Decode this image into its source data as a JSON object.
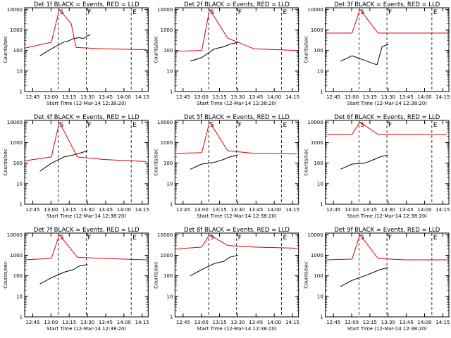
{
  "colors": {
    "events": "#000000",
    "lld": "#e00000",
    "axes": "#000000",
    "background": "#ffffff"
  },
  "chart_data": [
    {
      "type": "line",
      "title": "Det 1f BLACK = Events, RED = LLD",
      "xlabel": "Start Time (12-Mar-14 12:38:20)",
      "ylabel": "Counts/sec",
      "x_ticks": [
        "12:45",
        "13:00",
        "13:15",
        "13:30",
        "13:45",
        "14:00",
        "14:15"
      ],
      "y_ticks": [
        "1",
        "10",
        "100",
        "1000",
        "10000"
      ],
      "yscale": "log",
      "xlim": [
        "12:38:20",
        "14:20:00"
      ],
      "ylim": [
        1,
        12000
      ],
      "markers": {
        "S": [
          "13:06"
        ],
        "F": [
          "13:29"
        ],
        "E": [
          "14:06"
        ],
        "letters": [
          "S",
          "F",
          "E"
        ]
      },
      "series": [
        {
          "name": "Events",
          "points": [
            [
              750,
              55
            ],
            [
              1320,
              120
            ],
            [
              1950,
              260
            ],
            [
              2200,
              300
            ],
            [
              2400,
              380
            ],
            [
              2700,
              420
            ],
            [
              2900,
              380
            ],
            [
              3110,
              520
            ],
            [
              3240,
              590
            ]
          ]
        },
        {
          "name": "LLD",
          "points": [
            [
              0,
              130
            ],
            [
              1320,
              250
            ],
            [
              1710,
              10000
            ],
            [
              2300,
              2000
            ],
            [
              2540,
              140
            ],
            [
              3900,
              120
            ],
            [
              6000,
              110
            ]
          ]
        }
      ]
    },
    {
      "type": "line",
      "title": "Det 2f BLACK = Events, RED = LLD",
      "xlabel": "Start Time (12-Mar-14 12:38:20)",
      "ylabel": "Counts/sec",
      "x_ticks": [
        "12:45",
        "13:00",
        "13:15",
        "13:30",
        "13:45",
        "14:00",
        "14:15"
      ],
      "y_ticks": [
        "1",
        "10",
        "100",
        "1000",
        "10000"
      ],
      "yscale": "log",
      "xlim": [
        "12:38:20",
        "14:20:00"
      ],
      "ylim": [
        1,
        12000
      ],
      "markers": {
        "S": [
          "13:06"
        ],
        "F": [
          "13:29"
        ],
        "E": [
          "14:06"
        ],
        "letters": [
          "S",
          "F",
          "E"
        ]
      },
      "series": [
        {
          "name": "Events",
          "points": [
            [
              750,
              30
            ],
            [
              1320,
              45
            ],
            [
              1950,
              120
            ],
            [
              2400,
              150
            ],
            [
              2700,
              200
            ],
            [
              3110,
              250
            ]
          ]
        },
        {
          "name": "LLD",
          "points": [
            [
              0,
              90
            ],
            [
              1320,
              100
            ],
            [
              1710,
              10000
            ],
            [
              2600,
              400
            ],
            [
              3900,
              120
            ],
            [
              6000,
              100
            ]
          ]
        }
      ]
    },
    {
      "type": "line",
      "title": "Det 3f BLACK = Events, RED = LLD",
      "xlabel": "Start Time (12-Mar-14 12:38:20)",
      "ylabel": "Counts/sec",
      "x_ticks": [
        "12:45",
        "13:00",
        "13:15",
        "13:30",
        "13:45",
        "14:00",
        "14:15"
      ],
      "y_ticks": [
        "1",
        "10",
        "100",
        "1000",
        "10000"
      ],
      "yscale": "log",
      "xlim": [
        "12:38:20",
        "14:20:00"
      ],
      "ylim": [
        1,
        12000
      ],
      "markers": {
        "S": [
          "13:06"
        ],
        "F": [
          "13:29"
        ],
        "E": [
          "14:06"
        ],
        "letters": [
          "S",
          "F",
          "E"
        ]
      },
      "series": [
        {
          "name": "Events",
          "points": [
            [
              750,
              30
            ],
            [
              1320,
              55
            ],
            [
              2550,
              20
            ],
            [
              2800,
              150
            ],
            [
              3110,
              200
            ]
          ]
        },
        {
          "name": "LLD",
          "points": [
            [
              0,
              700
            ],
            [
              1320,
              700
            ],
            [
              1710,
              10000
            ],
            [
              2600,
              700
            ],
            [
              6000,
              700
            ]
          ]
        }
      ]
    },
    {
      "type": "line",
      "title": "Det 4f BLACK = Events, RED = LLD",
      "xlabel": "Start Time (12-Mar-14 12:38:20)",
      "ylabel": "Counts/sec",
      "x_ticks": [
        "12:45",
        "13:00",
        "13:15",
        "13:30",
        "13:45",
        "14:00",
        "14:15"
      ],
      "y_ticks": [
        "1",
        "10",
        "100",
        "1000",
        "10000"
      ],
      "yscale": "log",
      "xlim": [
        "12:38:20",
        "14:20:00"
      ],
      "ylim": [
        1,
        12000
      ],
      "markers": {
        "S": [
          "13:06"
        ],
        "F": [
          "13:29"
        ],
        "E": [
          "14:06"
        ],
        "letters": [
          "S",
          "F",
          "E"
        ]
      },
      "series": [
        {
          "name": "Events",
          "points": [
            [
              750,
              40
            ],
            [
              1320,
              100
            ],
            [
              1950,
              200
            ],
            [
              2400,
              250
            ],
            [
              2700,
              300
            ],
            [
              3110,
              400
            ]
          ]
        },
        {
          "name": "LLD",
          "points": [
            [
              0,
              130
            ],
            [
              1320,
              200
            ],
            [
              1710,
              10000
            ],
            [
              2600,
              200
            ],
            [
              3900,
              150
            ],
            [
              6000,
              120
            ]
          ]
        }
      ]
    },
    {
      "type": "line",
      "title": "Det 5f BLACK = Events, RED = LLD",
      "xlabel": "Start Time (12-Mar-14 12:38:20)",
      "ylabel": "Counts/sec",
      "x_ticks": [
        "12:45",
        "13:00",
        "13:15",
        "13:30",
        "13:45",
        "14:00",
        "14:15"
      ],
      "y_ticks": [
        "1",
        "10",
        "100",
        "1000",
        "10000"
      ],
      "yscale": "log",
      "xlim": [
        "12:38:20",
        "14:20:00"
      ],
      "ylim": [
        1,
        12000
      ],
      "markers": {
        "S": [
          "13:06"
        ],
        "F": [
          "13:29"
        ],
        "E": [
          "14:06"
        ],
        "letters": [
          "S",
          "F",
          "E"
        ]
      },
      "series": [
        {
          "name": "Events",
          "points": [
            [
              750,
              50
            ],
            [
              1320,
              90
            ],
            [
              1950,
              110
            ],
            [
              2400,
              150
            ],
            [
              2700,
              200
            ],
            [
              3110,
              250
            ]
          ]
        },
        {
          "name": "LLD",
          "points": [
            [
              0,
              300
            ],
            [
              1320,
              320
            ],
            [
              1710,
              10000
            ],
            [
              2600,
              400
            ],
            [
              3900,
              300
            ],
            [
              6000,
              280
            ]
          ]
        }
      ]
    },
    {
      "type": "line",
      "title": "Det 6f BLACK = Events, RED = LLD",
      "xlabel": "Start Time (12-Mar-14 12:38:20)",
      "ylabel": "Counts/sec",
      "x_ticks": [
        "12:45",
        "13:00",
        "13:15",
        "13:30",
        "13:45",
        "14:00",
        "14:15"
      ],
      "y_ticks": [
        "1",
        "10",
        "100",
        "1000",
        "10000"
      ],
      "yscale": "log",
      "xlim": [
        "12:38:20",
        "14:20:00"
      ],
      "ylim": [
        1,
        12000
      ],
      "markers": {
        "S": [
          "13:06"
        ],
        "F": [
          "13:29"
        ],
        "E": [
          "14:06"
        ],
        "letters": [
          "S",
          "F",
          "E"
        ]
      },
      "series": [
        {
          "name": "Events",
          "points": [
            [
              750,
              50
            ],
            [
              1320,
              90
            ],
            [
              1950,
              100
            ],
            [
              2400,
              150
            ],
            [
              2700,
              200
            ],
            [
              3110,
              250
            ]
          ]
        },
        {
          "name": "LLD",
          "points": [
            [
              0,
              2500
            ],
            [
              1320,
              2500
            ],
            [
              1710,
              10000
            ],
            [
              2600,
              2500
            ],
            [
              6000,
              2500
            ]
          ]
        }
      ]
    },
    {
      "type": "line",
      "title": "Det 7f BLACK = Events, RED = LLD",
      "xlabel": "Start Time (12-Mar-14 12:38:20)",
      "ylabel": "Counts/sec",
      "x_ticks": [
        "12:45",
        "13:00",
        "13:15",
        "13:30",
        "13:45",
        "14:00",
        "14:15"
      ],
      "y_ticks": [
        "1",
        "10",
        "100",
        "1000",
        "10000"
      ],
      "yscale": "log",
      "xlim": [
        "12:38:20",
        "14:20:00"
      ],
      "ylim": [
        1,
        12000
      ],
      "markers": {
        "S": [
          "13:06"
        ],
        "F": [
          "13:29"
        ],
        "E": [
          "14:06"
        ],
        "letters": [
          "S",
          "F",
          "E"
        ]
      },
      "series": [
        {
          "name": "Events",
          "points": [
            [
              750,
              40
            ],
            [
              1320,
              80
            ],
            [
              1950,
              150
            ],
            [
              2400,
              200
            ],
            [
              2700,
              300
            ],
            [
              3110,
              350
            ]
          ]
        },
        {
          "name": "LLD",
          "points": [
            [
              0,
              600
            ],
            [
              1320,
              700
            ],
            [
              1710,
              10000
            ],
            [
              2600,
              800
            ],
            [
              3900,
              700
            ],
            [
              6000,
              600
            ]
          ]
        }
      ]
    },
    {
      "type": "line",
      "title": "Det 8f BLACK = Events, RED = LLD",
      "xlabel": "Start Time (12-Mar-14 12:38:20)",
      "ylabel": "Counts/sec",
      "x_ticks": [
        "12:45",
        "13:00",
        "13:15",
        "13:30",
        "13:45",
        "14:00",
        "14:15"
      ],
      "y_ticks": [
        "1",
        "10",
        "100",
        "1000",
        "10000"
      ],
      "yscale": "log",
      "xlim": [
        "12:38:20",
        "14:20:00"
      ],
      "ylim": [
        1,
        12000
      ],
      "markers": {
        "S": [
          "13:06"
        ],
        "F": [
          "13:29"
        ],
        "E": [
          "14:06"
        ],
        "letters": [
          "S",
          "F",
          "E"
        ]
      },
      "series": [
        {
          "name": "Events",
          "points": [
            [
              750,
              100
            ],
            [
              1320,
              200
            ],
            [
              1950,
              400
            ],
            [
              2400,
              500
            ],
            [
              2700,
              800
            ],
            [
              3110,
              1000
            ]
          ]
        },
        {
          "name": "LLD",
          "points": [
            [
              0,
              2000
            ],
            [
              1320,
              2500
            ],
            [
              1710,
              10000
            ],
            [
              2600,
              3000
            ],
            [
              3900,
              2500
            ],
            [
              6000,
              2200
            ]
          ]
        }
      ]
    },
    {
      "type": "line",
      "title": "Det 9f BLACK = Events, RED = LLD",
      "xlabel": "Start Time (12-Mar-14 12:38:20)",
      "ylabel": "Counts/sec",
      "x_ticks": [
        "12:45",
        "13:00",
        "13:15",
        "13:30",
        "13:45",
        "14:00",
        "14:15"
      ],
      "y_ticks": [
        "1",
        "10",
        "100",
        "1000",
        "10000"
      ],
      "yscale": "log",
      "xlim": [
        "12:38:20",
        "14:20:00"
      ],
      "ylim": [
        1,
        12000
      ],
      "markers": {
        "S": [
          "13:06"
        ],
        "F": [
          "13:29"
        ],
        "E": [
          "14:06"
        ],
        "letters": [
          "S",
          "F",
          "E"
        ]
      },
      "series": [
        {
          "name": "Events",
          "points": [
            [
              750,
              30
            ],
            [
              1320,
              60
            ],
            [
              1950,
              100
            ],
            [
              2400,
              150
            ],
            [
              2700,
              200
            ],
            [
              3110,
              250
            ]
          ]
        },
        {
          "name": "LLD",
          "points": [
            [
              0,
              600
            ],
            [
              1320,
              650
            ],
            [
              1710,
              10000
            ],
            [
              2600,
              700
            ],
            [
              3900,
              600
            ],
            [
              6000,
              600
            ]
          ]
        }
      ]
    }
  ]
}
